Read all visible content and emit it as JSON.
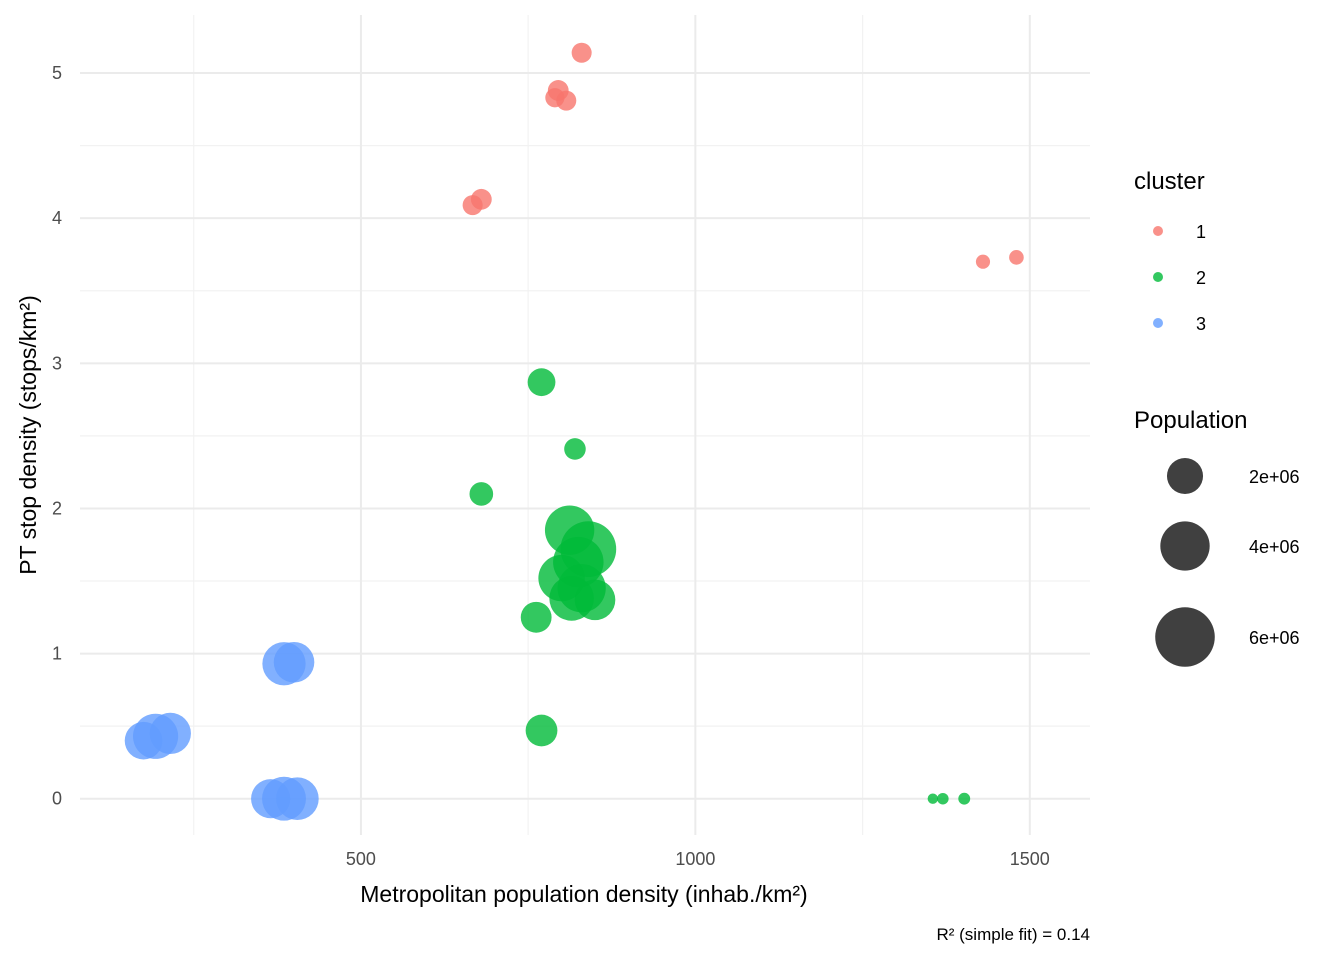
{
  "chart_data": {
    "type": "scatter",
    "xlabel": "Metropolitan population density (inhab./km²)",
    "ylabel": "PT stop density (stops/km²)",
    "caption": "R² (simple fit) = 0.14",
    "xlim": [
      80,
      1590
    ],
    "ylim": [
      -0.25,
      5.4
    ],
    "x_ticks": [
      500,
      1000,
      1500
    ],
    "x_minor_ticks": [
      250,
      750,
      1250
    ],
    "y_ticks": [
      0,
      1,
      2,
      3,
      4,
      5
    ],
    "y_minor_ticks": [
      0.5,
      1.5,
      2.5,
      3.5,
      4.5
    ],
    "grid": true,
    "legend_position": "right",
    "color_legend": {
      "title": "cluster",
      "entries": [
        {
          "label": "1",
          "color": "#F8766D"
        },
        {
          "label": "2",
          "color": "#00BA38"
        },
        {
          "label": "3",
          "color": "#619CFF"
        }
      ]
    },
    "size_legend": {
      "title": "Population",
      "entries": [
        {
          "label": "2e+06",
          "value": 2000000
        },
        {
          "label": "4e+06",
          "value": 4000000
        },
        {
          "label": "6e+06",
          "value": 6000000
        }
      ]
    },
    "series": [
      {
        "cluster": "1",
        "color": "#F8766D",
        "points": [
          {
            "x": 830,
            "y": 5.14,
            "pop": 500000
          },
          {
            "x": 795,
            "y": 4.88,
            "pop": 550000
          },
          {
            "x": 790,
            "y": 4.83,
            "pop": 450000
          },
          {
            "x": 807,
            "y": 4.81,
            "pop": 500000
          },
          {
            "x": 680,
            "y": 4.13,
            "pop": 550000
          },
          {
            "x": 667,
            "y": 4.09,
            "pop": 500000
          },
          {
            "x": 1430,
            "y": 3.7,
            "pop": 200000
          },
          {
            "x": 1480,
            "y": 3.73,
            "pop": 220000
          }
        ]
      },
      {
        "cluster": "2",
        "color": "#00BA38",
        "points": [
          {
            "x": 770,
            "y": 2.87,
            "pop": 1100000
          },
          {
            "x": 820,
            "y": 2.41,
            "pop": 600000
          },
          {
            "x": 680,
            "y": 2.1,
            "pop": 750000
          },
          {
            "x": 812,
            "y": 1.85,
            "pop": 4000000
          },
          {
            "x": 840,
            "y": 1.72,
            "pop": 5200000
          },
          {
            "x": 825,
            "y": 1.63,
            "pop": 4200000
          },
          {
            "x": 800,
            "y": 1.52,
            "pop": 3500000
          },
          {
            "x": 830,
            "y": 1.45,
            "pop": 3800000
          },
          {
            "x": 815,
            "y": 1.38,
            "pop": 3200000
          },
          {
            "x": 850,
            "y": 1.37,
            "pop": 2600000
          },
          {
            "x": 762,
            "y": 1.25,
            "pop": 1400000
          },
          {
            "x": 770,
            "y": 0.47,
            "pop": 1500000
          },
          {
            "x": 1355,
            "y": 0.0,
            "pop": 80000
          },
          {
            "x": 1370,
            "y": 0.0,
            "pop": 110000
          },
          {
            "x": 1402,
            "y": 0.0,
            "pop": 120000
          }
        ]
      },
      {
        "cluster": "3",
        "color": "#619CFF",
        "points": [
          {
            "x": 385,
            "y": 0.93,
            "pop": 3000000
          },
          {
            "x": 400,
            "y": 0.94,
            "pop": 2600000
          },
          {
            "x": 175,
            "y": 0.4,
            "pop": 2200000
          },
          {
            "x": 193,
            "y": 0.43,
            "pop": 3300000
          },
          {
            "x": 215,
            "y": 0.45,
            "pop": 2700000
          },
          {
            "x": 385,
            "y": 0.0,
            "pop": 3100000
          },
          {
            "x": 405,
            "y": 0.0,
            "pop": 2900000
          },
          {
            "x": 365,
            "y": 0.0,
            "pop": 2400000
          }
        ]
      }
    ]
  }
}
